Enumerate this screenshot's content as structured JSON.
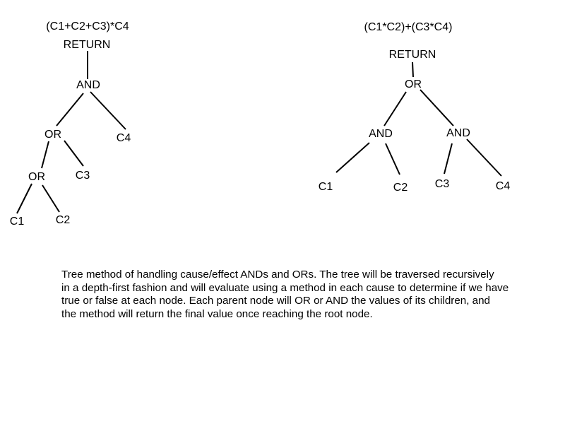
{
  "tree_left": {
    "formula": "(C1+C2+C3)*C4",
    "return": "RETURN",
    "and": "AND",
    "or_upper": "OR",
    "or_lower": "OR",
    "c1": "C1",
    "c2": "C2",
    "c3": "C3",
    "c4": "C4"
  },
  "tree_right": {
    "formula": "(C1*C2)+(C3*C4)",
    "return": "RETURN",
    "or": "OR",
    "and_left": "AND",
    "and_right": "AND",
    "c1": "C1",
    "c2": "C2",
    "c3": "C3",
    "c4": "C4"
  },
  "caption": {
    "line1": "Tree method of handling cause/effect ANDs and ORs.  The tree will be traversed recursively",
    "line2": "in a depth-first fashion and will evaluate using a method in each cause to determine if we have",
    "line3": "true or false at each node.  Each parent node will OR or AND the values of its children, and",
    "line4": "the method will return the final value once reaching the root node."
  },
  "colors": {
    "text": "#000000",
    "line": "#000000",
    "background": "#ffffff"
  }
}
